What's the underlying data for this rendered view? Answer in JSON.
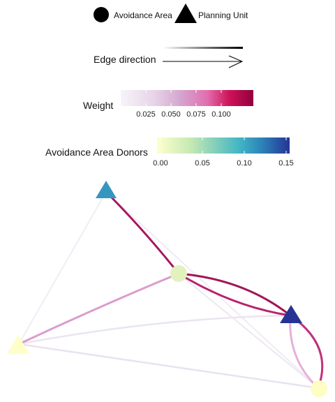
{
  "legend": {
    "shape_items": [
      {
        "label": "Avoidance Area",
        "icon": "circle-icon"
      },
      {
        "label": "Planning Unit",
        "icon": "triangle-icon"
      }
    ],
    "edge_direction_label": "Edge direction",
    "weight": {
      "title": "Weight",
      "ticks": [
        "0.025",
        "0.050",
        "0.075",
        "0.100"
      ],
      "colors": [
        "#f7f4f9",
        "#e7d4e8",
        "#d4a6cf",
        "#e26fb0",
        "#ce1256",
        "#91003f"
      ]
    },
    "donors": {
      "title": "Avoidance Area Donors",
      "ticks": [
        "0.00",
        "0.05",
        "0.10",
        "0.15"
      ],
      "colors": [
        "#ffffcc",
        "#c7e9b4",
        "#7fcdbb",
        "#41b6c4",
        "#2c7fb8",
        "#253494"
      ]
    }
  },
  "nodes": [
    {
      "id": "pu-top",
      "type": "planning-unit",
      "color": "#3597c0"
    },
    {
      "id": "aa-center",
      "type": "avoidance-area",
      "color": "#e2f2bf"
    },
    {
      "id": "pu-right",
      "type": "planning-unit",
      "color": "#253494"
    },
    {
      "id": "pu-left",
      "type": "planning-unit",
      "color": "#fefec8"
    },
    {
      "id": "aa-bottom-right",
      "type": "avoidance-area",
      "color": "#fdfdc4"
    }
  ],
  "edges": [
    {
      "from": "pu-top",
      "to": "aa-center",
      "color": "#a51660"
    },
    {
      "from": "aa-center",
      "to": "pu-right",
      "color": "#a01558"
    },
    {
      "from": "pu-right",
      "to": "aa-center",
      "color": "#b8226e"
    },
    {
      "from": "aa-center",
      "to": "pu-left",
      "color": "#dc9ccc"
    },
    {
      "from": "pu-right",
      "to": "aa-bottom-right",
      "color": "#c0327e"
    },
    {
      "from": "pu-right",
      "to": "aa-bottom-right",
      "color": "#e6b0d8"
    },
    {
      "from": "pu-left",
      "to": "pu-right",
      "color": "#ece4f0"
    },
    {
      "from": "pu-left",
      "to": "aa-bottom-right",
      "color": "#e8e2f0"
    },
    {
      "from": "pu-top",
      "to": "pu-left",
      "color": "#f1ecf5"
    },
    {
      "from": "pu-top",
      "to": "aa-bottom-right",
      "color": "#f0ebf4"
    },
    {
      "from": "aa-center",
      "to": "aa-bottom-right",
      "color": "#ede7f2"
    }
  ]
}
